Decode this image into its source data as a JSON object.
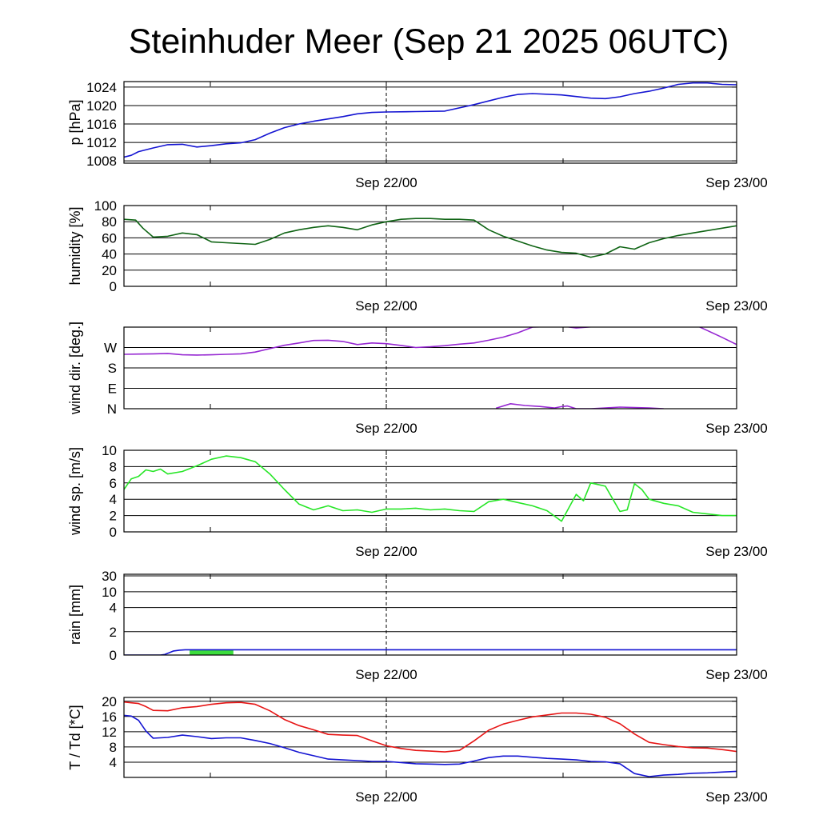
{
  "title": "Steinhuder Meer (Sep 21 2025 06UTC)",
  "x_ticks": [
    "Sep 22/00",
    "Sep 23/00"
  ],
  "colors": {
    "pressure": "#1414d2",
    "humidity": "#0f6414",
    "wind_dir": "#9628d2",
    "wind_speed": "#28e628",
    "rain_line": "#1414d2",
    "rain_bar": "#3cdc3c",
    "temperature": "#e61414",
    "dewpoint": "#1414d2"
  },
  "chart_data": [
    {
      "type": "line",
      "title": "p [hPa]",
      "ylabel": "p [hPa]",
      "ylim": [
        1007.5,
        1025.2
      ],
      "yticks": [
        1008,
        1012,
        1016,
        1020,
        1024
      ],
      "ytick_labels": [
        "1008",
        "1012",
        "1016",
        "1020",
        "1024"
      ],
      "xlim": [
        0,
        42
      ],
      "x": [
        0,
        0.5,
        1,
        2,
        3,
        4,
        5,
        6,
        7,
        8,
        9,
        10,
        11,
        12,
        13,
        14,
        15,
        16,
        17,
        18,
        20,
        22,
        24,
        25,
        26,
        27,
        28,
        30,
        32,
        33,
        34,
        35,
        36,
        37,
        38,
        39,
        40,
        41,
        42
      ],
      "series": [
        {
          "name": "pressure",
          "color_key": "pressure",
          "values": [
            1008.8,
            1009.2,
            1010,
            1010.8,
            1011.5,
            1011.6,
            1011,
            1011.3,
            1011.7,
            1011.9,
            1012.6,
            1014,
            1015.2,
            1016,
            1016.6,
            1017.1,
            1017.6,
            1018.2,
            1018.5,
            1018.6,
            1018.7,
            1018.8,
            1020.2,
            1021,
            1021.8,
            1022.4,
            1022.6,
            1022.3,
            1021.6,
            1021.5,
            1021.9,
            1022.6,
            1023.1,
            1023.8,
            1024.6,
            1024.9,
            1024.9,
            1024.6,
            1024.5
          ]
        }
      ]
    },
    {
      "type": "line",
      "title": "humidity [%]",
      "ylabel": "humidity [%]",
      "ylim": [
        0,
        100
      ],
      "yticks": [
        0,
        20,
        40,
        60,
        80,
        100
      ],
      "ytick_labels": [
        "0",
        "20",
        "40",
        "60",
        "80",
        "100"
      ],
      "xlim": [
        0,
        42
      ],
      "x": [
        0,
        0.8,
        1.3,
        2,
        3,
        4,
        5,
        6,
        7,
        8,
        9,
        10,
        11,
        12,
        13,
        14,
        15,
        16,
        17,
        18,
        19,
        20,
        21,
        22,
        23,
        24,
        25,
        26,
        27,
        28,
        29,
        30,
        31,
        32,
        33,
        34,
        35,
        36,
        37,
        38,
        39,
        40,
        41,
        42
      ],
      "series": [
        {
          "name": "humidity",
          "color_key": "humidity",
          "values": [
            83,
            82,
            72,
            61,
            62,
            66,
            64,
            55,
            54,
            53,
            52,
            58,
            66,
            70,
            73,
            75,
            73,
            70,
            76,
            80,
            83,
            84,
            84,
            83,
            83,
            82,
            70,
            62,
            56,
            50,
            45,
            42,
            41,
            36,
            40,
            49,
            46,
            54,
            59,
            63,
            66,
            69,
            72,
            75
          ]
        }
      ]
    },
    {
      "type": "line",
      "title": "wind dir. [deg.]",
      "ylabel": "wind dir. [deg.]",
      "ylim": [
        0,
        360
      ],
      "yticks": [
        0,
        90,
        180,
        270
      ],
      "ytick_labels": [
        "N",
        "E",
        "S",
        "W"
      ],
      "xlim": [
        0,
        42
      ],
      "x": [
        0,
        1,
        2,
        3,
        4,
        5,
        6,
        7,
        8,
        9,
        10,
        11,
        12,
        13,
        14,
        15,
        16,
        17,
        18,
        19,
        20,
        21,
        22,
        23,
        24,
        25,
        26,
        27,
        28,
        29,
        30,
        31,
        32,
        33,
        34,
        35,
        36,
        37,
        38,
        39,
        40,
        41,
        42
      ],
      "series": [
        {
          "name": "wind direction",
          "color_key": "wind_dir",
          "values": [
            240,
            241,
            242,
            244,
            238,
            237,
            238,
            240,
            242,
            250,
            265,
            280,
            290,
            301,
            302,
            297,
            283,
            290,
            287,
            279,
            270,
            273,
            278,
            285,
            290,
            302,
            316,
            335,
            360,
            362,
            365,
            356,
            361,
            362,
            367,
            363,
            363,
            366,
            369,
            374,
            345,
            315,
            283
          ]
        },
        {
          "name": "wind direction (wrapped)",
          "color_key": "wind_dir",
          "x": [
            25.5,
            26.5,
            27.5,
            28.5,
            29.5,
            30,
            30.4,
            31,
            32,
            33,
            34,
            35,
            36,
            37
          ],
          "values": [
            2,
            22,
            14,
            10,
            3,
            9,
            12,
            0,
            0,
            3,
            7,
            5,
            3,
            0
          ]
        }
      ]
    },
    {
      "type": "line",
      "title": "wind sp. [m/s]",
      "ylabel": "wind sp. [m/s]",
      "ylim": [
        0,
        10
      ],
      "yticks": [
        0,
        2,
        4,
        6,
        8,
        10
      ],
      "ytick_labels": [
        "0",
        "2",
        "4",
        "6",
        "8",
        "10"
      ],
      "xlim": [
        0,
        42
      ],
      "x": [
        0,
        0.5,
        1,
        1.5,
        2,
        2.5,
        3,
        4,
        5,
        6,
        7,
        8,
        9,
        10,
        11,
        12,
        13,
        14,
        15,
        16,
        17,
        18,
        19,
        20,
        21,
        22,
        23,
        24,
        25,
        26,
        27,
        28,
        29,
        30,
        31,
        31.5,
        32,
        32.5,
        33,
        34,
        34.5,
        35,
        35.5,
        36,
        37,
        38,
        39,
        40,
        41,
        42
      ],
      "series": [
        {
          "name": "wind speed",
          "color_key": "wind_speed",
          "values": [
            5.2,
            6.5,
            6.8,
            7.6,
            7.4,
            7.7,
            7.1,
            7.4,
            8.1,
            8.9,
            9.3,
            9.1,
            8.6,
            7.1,
            5.2,
            3.4,
            2.7,
            3.2,
            2.6,
            2.7,
            2.4,
            2.8,
            2.8,
            2.9,
            2.7,
            2.8,
            2.6,
            2.5,
            3.7,
            4.0,
            3.6,
            3.2,
            2.6,
            1.3,
            4.6,
            3.8,
            6.0,
            5.8,
            5.6,
            2.5,
            2.7,
            5.9,
            5.2,
            4.0,
            3.5,
            3.2,
            2.4,
            2.2,
            2.0,
            2.0
          ]
        }
      ]
    },
    {
      "type": "area",
      "title": "rain [mm]",
      "ylabel": "rain [mm]",
      "yticks": [
        0,
        2,
        4,
        10,
        30
      ],
      "ytick_labels": [
        "0",
        "2",
        "4",
        "10",
        "30"
      ],
      "xlim": [
        0,
        42
      ],
      "x": [
        0,
        2.5,
        2.8,
        3.1,
        3.4,
        3.8,
        4.2,
        6,
        7.5,
        42
      ],
      "series": [
        {
          "name": "accumulated rain",
          "color_key": "rain_line",
          "values": [
            0,
            0,
            0.05,
            0.2,
            0.35,
            0.42,
            0.45,
            0.45,
            0.45,
            0.45
          ]
        }
      ],
      "bars": [
        {
          "x_start": 4.5,
          "x_end": 7.5,
          "value": 0.45,
          "color_key": "rain_bar"
        }
      ]
    },
    {
      "type": "line",
      "title": "T / Td [*C]",
      "ylabel": "T / Td [*C]",
      "ylim": [
        0,
        21
      ],
      "yticks": [
        4,
        8,
        12,
        16,
        20
      ],
      "ytick_labels": [
        "4",
        "8",
        "12",
        "16",
        "20"
      ],
      "xlim": [
        0,
        42
      ],
      "x": [
        0,
        0.5,
        1,
        1.5,
        2,
        3,
        4,
        5,
        6,
        7,
        8,
        9,
        10,
        11,
        12,
        13,
        14,
        15,
        16,
        17,
        18,
        19,
        20,
        21,
        22,
        23,
        24,
        25,
        26,
        27,
        28,
        29,
        30,
        31,
        32,
        33,
        34,
        35,
        36,
        37,
        38,
        39,
        40,
        41,
        42
      ],
      "series": [
        {
          "name": "temperature",
          "color_key": "temperature",
          "values": [
            19.8,
            19.6,
            19.4,
            18.6,
            17.6,
            17.5,
            18.3,
            18.6,
            19.2,
            19.6,
            19.7,
            19.2,
            17.5,
            15.2,
            13.6,
            12.5,
            11.3,
            11.1,
            11,
            9.6,
            8.3,
            7.6,
            7.1,
            6.9,
            6.7,
            7.1,
            9.6,
            12.4,
            14,
            15,
            15.9,
            16.4,
            16.9,
            16.9,
            16.6,
            15.8,
            14.1,
            11.4,
            9.2,
            8.6,
            8.1,
            7.8,
            7.7,
            7.3,
            6.8
          ]
        },
        {
          "name": "dewpoint",
          "color_key": "dewpoint",
          "values": [
            16.3,
            16.1,
            15,
            12.2,
            10.3,
            10.5,
            11.1,
            10.7,
            10.2,
            10.4,
            10.4,
            9.7,
            8.9,
            7.8,
            6.6,
            5.7,
            4.8,
            4.6,
            4.4,
            4.2,
            4.2,
            3.9,
            3.6,
            3.5,
            3.4,
            3.5,
            4.3,
            5.2,
            5.6,
            5.6,
            5.3,
            5.0,
            4.8,
            4.6,
            4.2,
            4.1,
            3.6,
            1.0,
            0.2,
            0.6,
            0.8,
            1.1,
            1.2,
            1.4,
            1.6
          ]
        }
      ]
    }
  ]
}
